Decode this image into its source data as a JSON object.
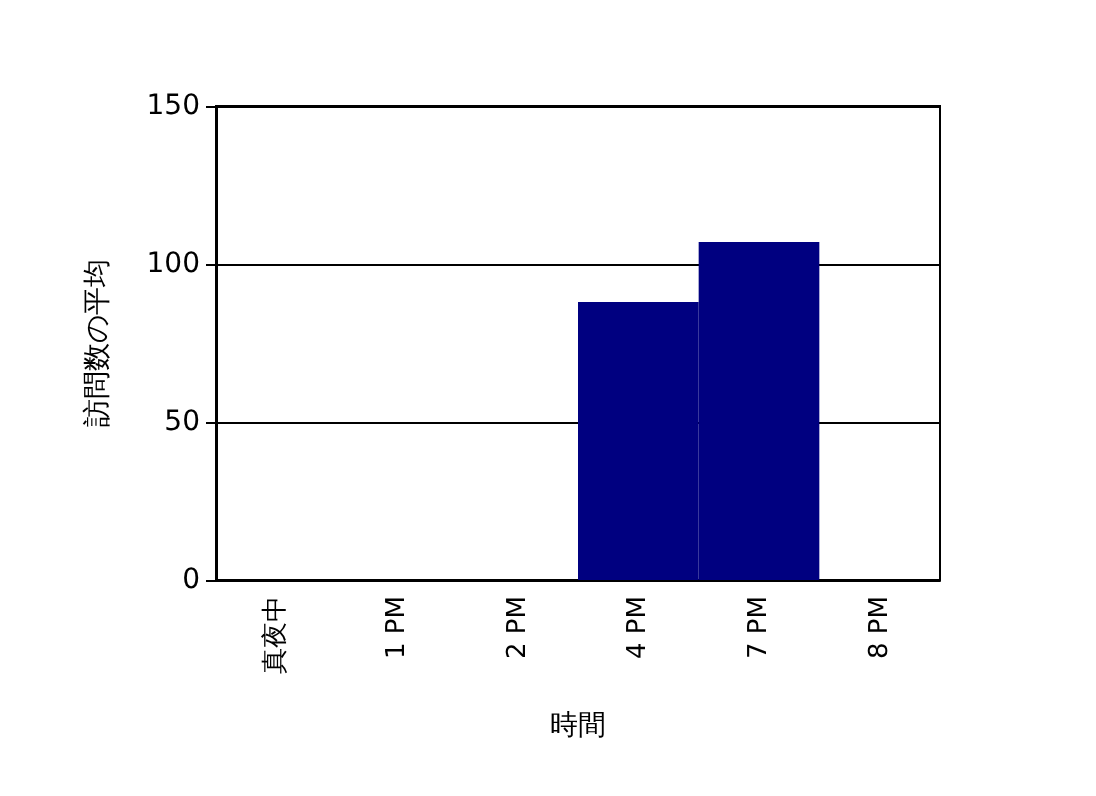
{
  "chart_data": {
    "type": "bar",
    "xlabel": "時間",
    "ylabel": "訪問数の平均",
    "categories": [
      "真夜中",
      "1 PM",
      "2 PM",
      "4 PM",
      "7 PM",
      "8 PM"
    ],
    "values": [
      0,
      0,
      0,
      88,
      107,
      0
    ],
    "color": "#000080",
    "ylim": [
      0,
      150
    ],
    "yticks": [
      0,
      50,
      100,
      150
    ],
    "grid": "y"
  }
}
